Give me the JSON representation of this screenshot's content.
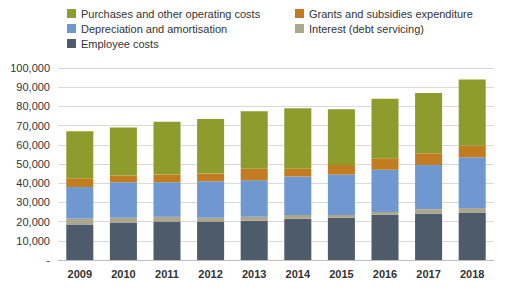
{
  "chart_data": {
    "type": "bar",
    "stacked": true,
    "grid": true,
    "legend": "top",
    "categories": [
      "2009",
      "2010",
      "2011",
      "2012",
      "2013",
      "2014",
      "2015",
      "2016",
      "2017",
      "2018"
    ],
    "series": [
      {
        "name": "Employee costs",
        "color": "#4d5b6b",
        "values": [
          18500,
          19500,
          20000,
          20000,
          20500,
          21500,
          22000,
          23500,
          24000,
          24500
        ]
      },
      {
        "name": "Interest (debt servicing)",
        "color": "#aca78a",
        "values": [
          3000,
          2500,
          2500,
          2000,
          2000,
          2000,
          1500,
          1500,
          2500,
          2500
        ]
      },
      {
        "name": "Depreciation and amortisation",
        "color": "#6f98d0",
        "values": [
          16500,
          18500,
          18000,
          19000,
          19000,
          20000,
          21000,
          22000,
          23000,
          26500
        ]
      },
      {
        "name": "Grants and subsidies expenditure",
        "color": "#c27b1f",
        "values": [
          4500,
          3500,
          4000,
          4000,
          6000,
          4000,
          5000,
          6000,
          6000,
          6000
        ]
      },
      {
        "name": "Purchases and other operating costs",
        "color": "#8e9c2d",
        "values": [
          24500,
          25000,
          27500,
          28500,
          30000,
          31500,
          29000,
          31000,
          31500,
          34500
        ]
      }
    ],
    "ylim": [
      0,
      100000
    ],
    "yticks": [
      {
        "value": 0,
        "label": "-"
      },
      {
        "value": 10000,
        "label": "10,000"
      },
      {
        "value": 20000,
        "label": "20,000"
      },
      {
        "value": 30000,
        "label": "30,000"
      },
      {
        "value": 40000,
        "label": "40,000"
      },
      {
        "value": 50000,
        "label": "50,000"
      },
      {
        "value": 60000,
        "label": "60,000"
      },
      {
        "value": 70000,
        "label": "70,000"
      },
      {
        "value": 80000,
        "label": "80,000"
      },
      {
        "value": 90000,
        "label": "90,000"
      },
      {
        "value": 100000,
        "label": "100,000"
      }
    ]
  }
}
